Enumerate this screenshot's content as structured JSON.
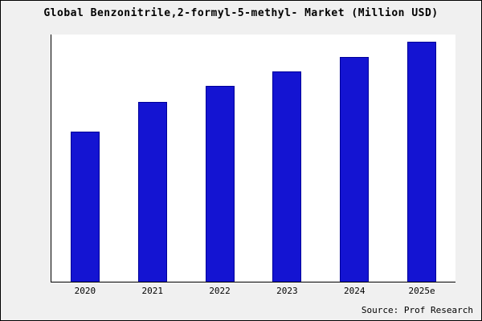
{
  "title": "Global Benzonitrile,2-formyl-5-methyl- Market (Million USD)",
  "source": "Source: Prof Research",
  "colors": {
    "background": "#f0f0f0",
    "plot_background": "#ffffff",
    "bar_fill": "#1414d2",
    "bar_border": "#000099",
    "axis": "#000000"
  },
  "chart_data": {
    "type": "bar",
    "title": "Global Benzonitrile,2-formyl-5-methyl- Market (Million USD)",
    "categories": [
      "2020",
      "2021",
      "2022",
      "2023",
      "2024",
      "2025e"
    ],
    "values": [
      62.5,
      75.0,
      81.5,
      87.5,
      93.5,
      100.0
    ],
    "xlabel": "",
    "ylabel": "",
    "ylim": [
      0,
      103
    ],
    "grid": false,
    "legend": false,
    "y_axis_ticks_visible": false,
    "annotation": "Source: Prof Research"
  }
}
